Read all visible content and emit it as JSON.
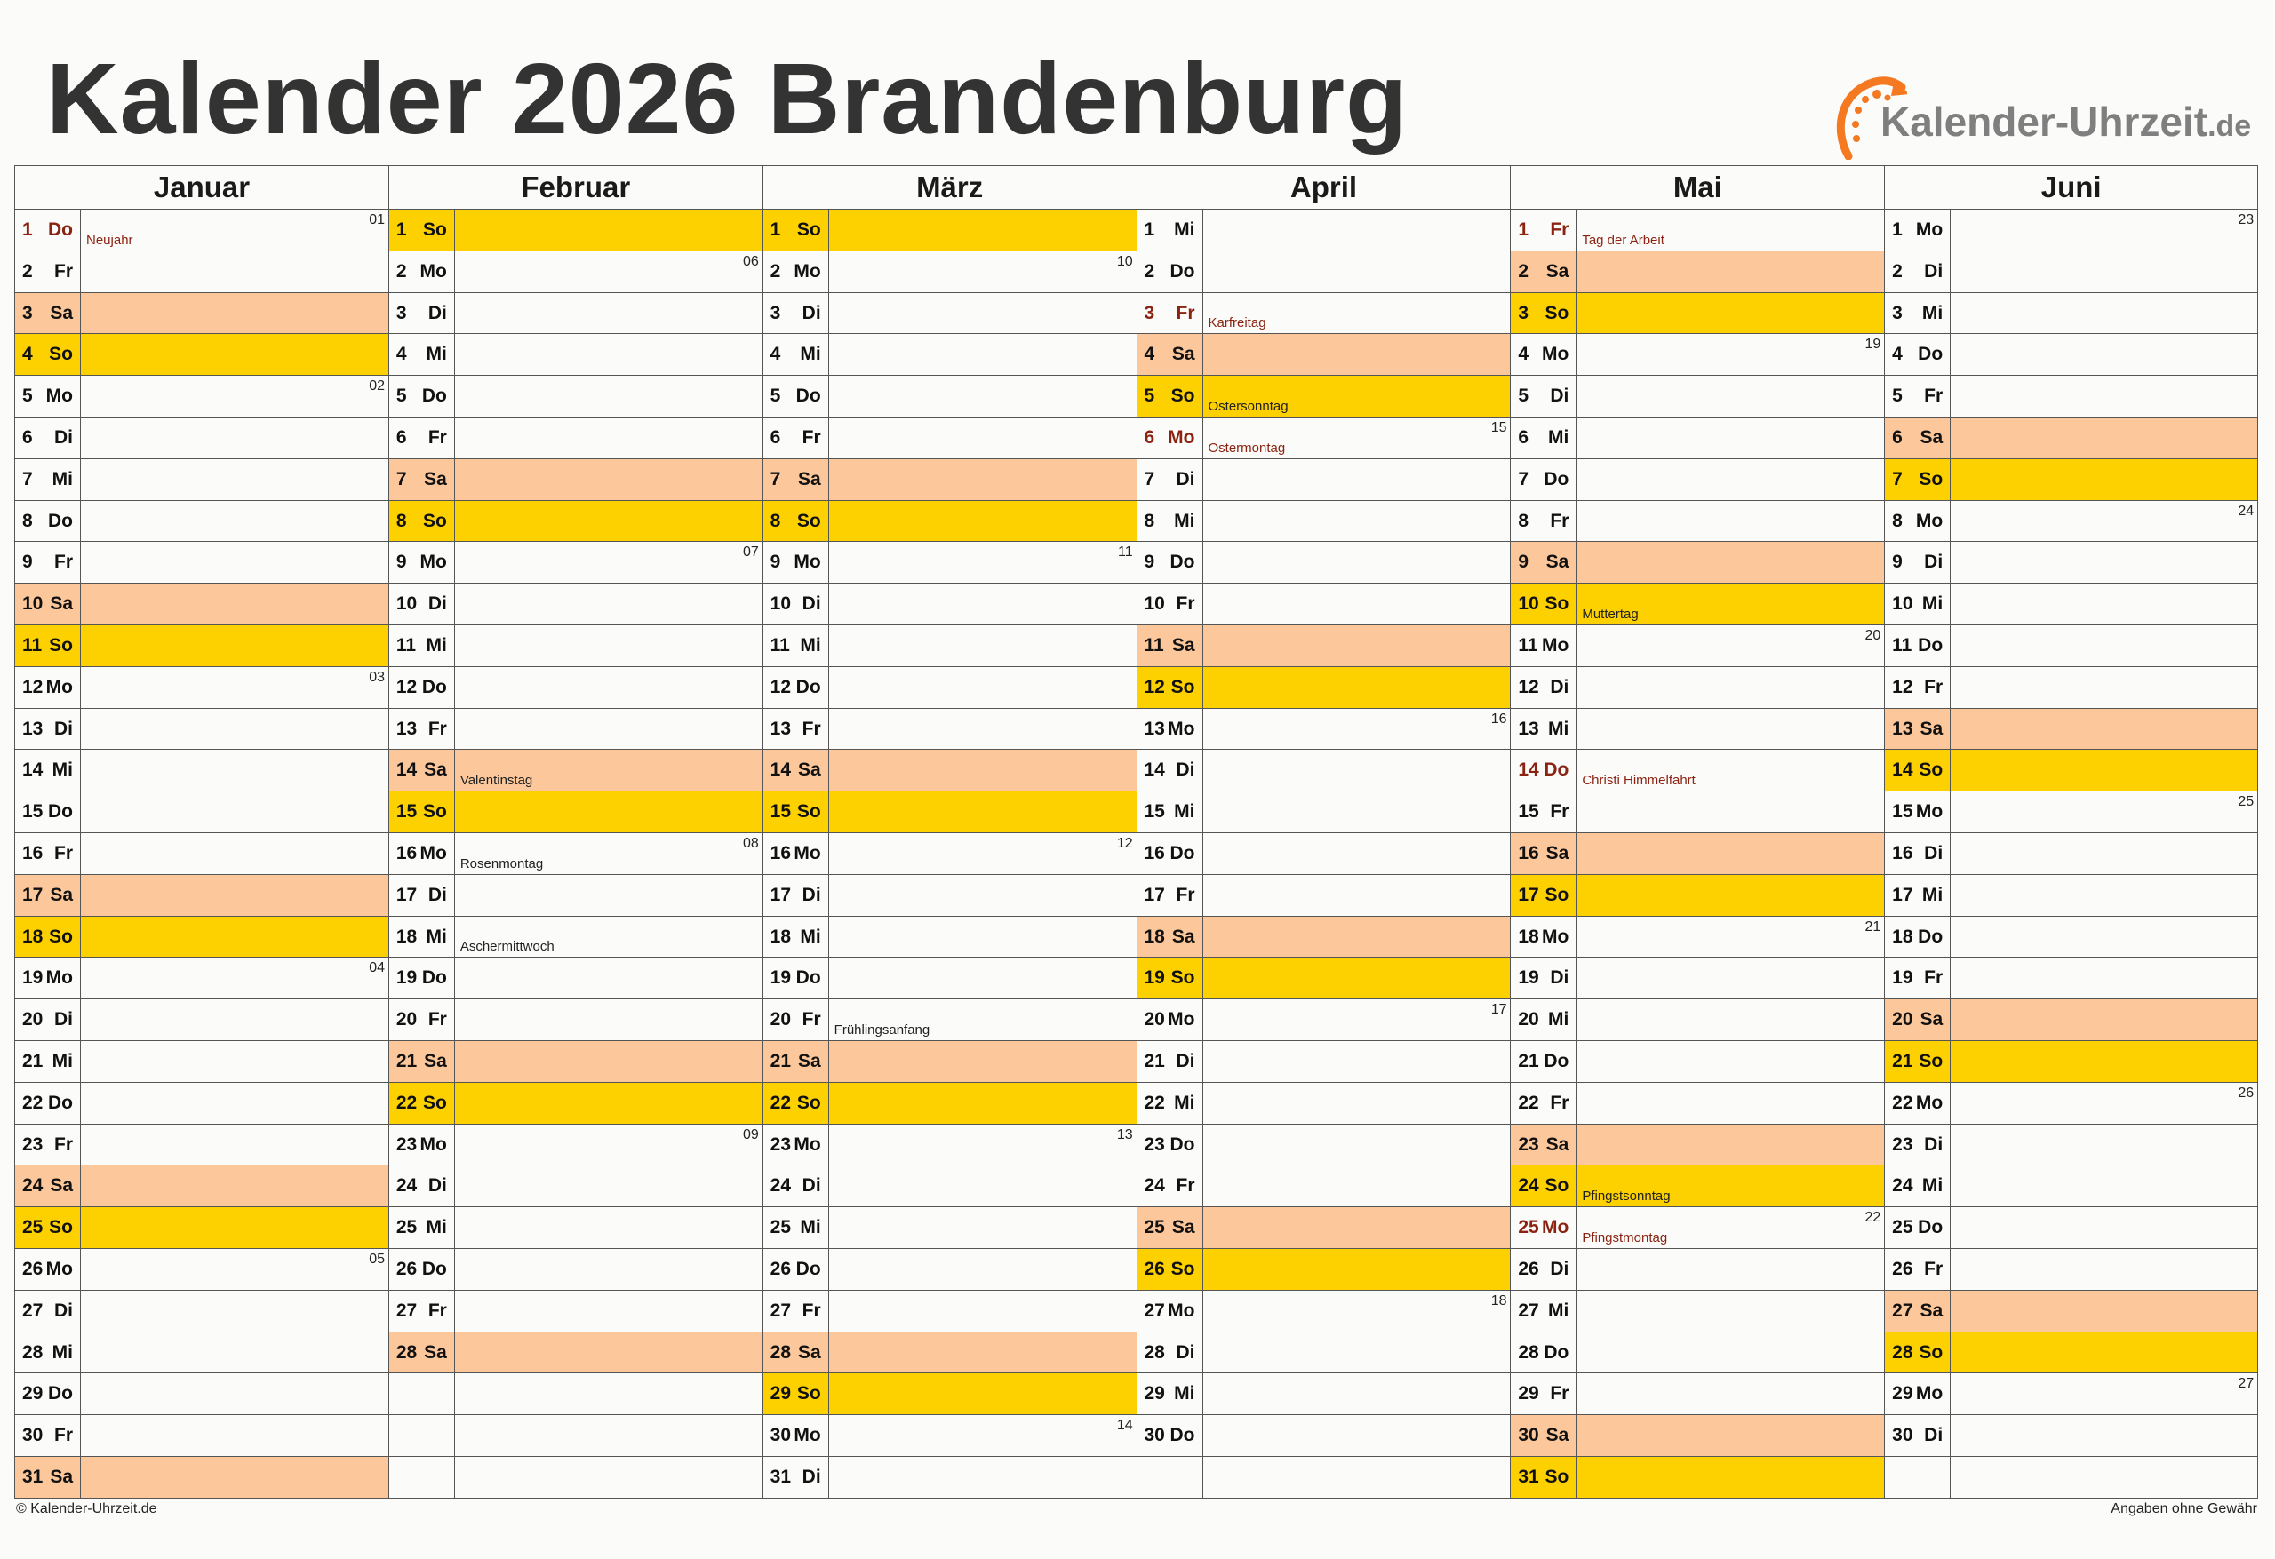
{
  "title": "Kalender 2026 Brandenburg",
  "logo": {
    "text": "Kalender-Uhrzeit",
    "tld": ".de",
    "colors": {
      "arc": "#f47920",
      "text": "#7f7f7f"
    }
  },
  "colors": {
    "saturday": "#fbc79b",
    "sunday": "#fdd000",
    "holiday_text": "#8b2312"
  },
  "months": [
    {
      "name": "Januar",
      "days": [
        "1 Do",
        "2 Fr",
        "3 Sa",
        "4 So",
        "5 Mo",
        "6 Di",
        "7 Mi",
        "8 Do",
        "9 Fr",
        "10 Sa",
        "11 So",
        "12 Mo",
        "13 Di",
        "14 Mi",
        "15 Do",
        "16 Fr",
        "17 Sa",
        "18 So",
        "19 Mo",
        "20 Di",
        "21 Mi",
        "22 Do",
        "23 Fr",
        "24 Sa",
        "25 So",
        "26 Mo",
        "27 Di",
        "28 Mi",
        "29 Do",
        "30 Fr",
        "31 Sa"
      ],
      "week_numbers": {
        "1": "01",
        "5": "02",
        "12": "03",
        "19": "04",
        "26": "05"
      },
      "notes": {
        "1": {
          "label": "Neujahr",
          "holiday": true
        }
      }
    },
    {
      "name": "Februar",
      "days": [
        "1 So",
        "2 Mo",
        "3 Di",
        "4 Mi",
        "5 Do",
        "6 Fr",
        "7 Sa",
        "8 So",
        "9 Mo",
        "10 Di",
        "11 Mi",
        "12 Do",
        "13 Fr",
        "14 Sa",
        "15 So",
        "16 Mo",
        "17 Di",
        "18 Mi",
        "19 Do",
        "20 Fr",
        "21 Sa",
        "22 So",
        "23 Mo",
        "24 Di",
        "25 Mi",
        "26 Do",
        "27 Fr",
        "28 Sa"
      ],
      "week_numbers": {
        "2": "06",
        "9": "07",
        "16": "08",
        "23": "09"
      },
      "notes": {
        "14": {
          "label": "Valentinstag",
          "holiday": false
        },
        "16": {
          "label": "Rosenmontag",
          "holiday": false
        },
        "18": {
          "label": "Aschermittwoch",
          "holiday": false
        }
      }
    },
    {
      "name": "März",
      "days": [
        "1 So",
        "2 Mo",
        "3 Di",
        "4 Mi",
        "5 Do",
        "6 Fr",
        "7 Sa",
        "8 So",
        "9 Mo",
        "10 Di",
        "11 Mi",
        "12 Do",
        "13 Fr",
        "14 Sa",
        "15 So",
        "16 Mo",
        "17 Di",
        "18 Mi",
        "19 Do",
        "20 Fr",
        "21 Sa",
        "22 So",
        "23 Mo",
        "24 Di",
        "25 Mi",
        "26 Do",
        "27 Fr",
        "28 Sa",
        "29 So",
        "30 Mo",
        "31 Di"
      ],
      "week_numbers": {
        "2": "10",
        "9": "11",
        "16": "12",
        "23": "13",
        "30": "14"
      },
      "notes": {
        "20": {
          "label": "Frühlingsanfang",
          "holiday": false
        }
      }
    },
    {
      "name": "April",
      "days": [
        "1 Mi",
        "2 Do",
        "3 Fr",
        "4 Sa",
        "5 So",
        "6 Mo",
        "7 Di",
        "8 Mi",
        "9 Do",
        "10 Fr",
        "11 Sa",
        "12 So",
        "13 Mo",
        "14 Di",
        "15 Mi",
        "16 Do",
        "17 Fr",
        "18 Sa",
        "19 So",
        "20 Mo",
        "21 Di",
        "22 Mi",
        "23 Do",
        "24 Fr",
        "25 Sa",
        "26 So",
        "27 Mo",
        "28 Di",
        "29 Mi",
        "30 Do"
      ],
      "week_numbers": {
        "6": "15",
        "13": "16",
        "20": "17",
        "27": "18"
      },
      "notes": {
        "3": {
          "label": "Karfreitag",
          "holiday": true
        },
        "5": {
          "label": "Ostersonntag",
          "holiday": false
        },
        "6": {
          "label": "Ostermontag",
          "holiday": true
        }
      }
    },
    {
      "name": "Mai",
      "days": [
        "1 Fr",
        "2 Sa",
        "3 So",
        "4 Mo",
        "5 Di",
        "6 Mi",
        "7 Do",
        "8 Fr",
        "9 Sa",
        "10 So",
        "11 Mo",
        "12 Di",
        "13 Mi",
        "14 Do",
        "15 Fr",
        "16 Sa",
        "17 So",
        "18 Mo",
        "19 Di",
        "20 Mi",
        "21 Do",
        "22 Fr",
        "23 Sa",
        "24 So",
        "25 Mo",
        "26 Di",
        "27 Mi",
        "28 Do",
        "29 Fr",
        "30 Sa",
        "31 So"
      ],
      "week_numbers": {
        "4": "19",
        "11": "20",
        "18": "21",
        "25": "22"
      },
      "notes": {
        "1": {
          "label": "Tag der Arbeit",
          "holiday": true
        },
        "10": {
          "label": "Muttertag",
          "holiday": false
        },
        "14": {
          "label": "Christi Himmelfahrt",
          "holiday": true
        },
        "24": {
          "label": "Pfingstsonntag",
          "holiday": false
        },
        "25": {
          "label": "Pfingstmontag",
          "holiday": true
        }
      }
    },
    {
      "name": "Juni",
      "days": [
        "1 Mo",
        "2 Di",
        "3 Mi",
        "4 Do",
        "5 Fr",
        "6 Sa",
        "7 So",
        "8 Mo",
        "9 Di",
        "10 Mi",
        "11 Do",
        "12 Fr",
        "13 Sa",
        "14 So",
        "15 Mo",
        "16 Di",
        "17 Mi",
        "18 Do",
        "19 Fr",
        "20 Sa",
        "21 So",
        "22 Mo",
        "23 Di",
        "24 Mi",
        "25 Do",
        "26 Fr",
        "27 Sa",
        "28 So",
        "29 Mo",
        "30 Di"
      ],
      "week_numbers": {
        "1": "23",
        "8": "24",
        "15": "25",
        "22": "26",
        "29": "27"
      },
      "notes": {}
    }
  ],
  "footer": {
    "copyright": "© Kalender-Uhrzeit.de",
    "disclaimer": "Angaben ohne Gewähr"
  }
}
